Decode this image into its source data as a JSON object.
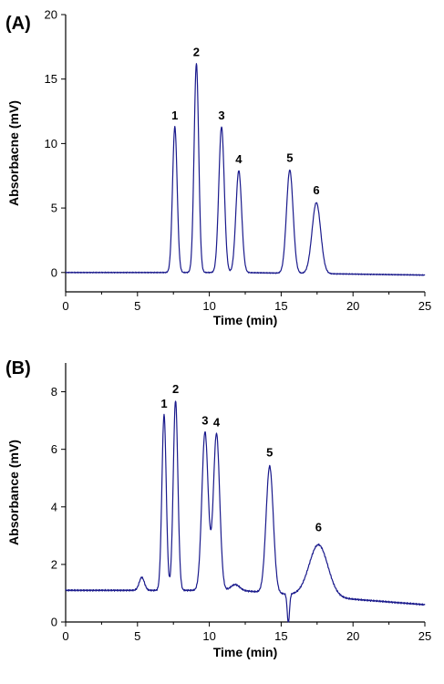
{
  "chart_data": [
    {
      "type": "line",
      "panel_label": "(A)",
      "xlabel": "Time (min)",
      "ylabel": "Absorbacne (mV)",
      "xlim": [
        0,
        25
      ],
      "ylim": [
        -1.5,
        20
      ],
      "xticks": [
        0,
        5,
        10,
        15,
        20,
        25
      ],
      "yticks": [
        0,
        5,
        10,
        15,
        20
      ],
      "line_color": "#1a1a8c",
      "baseline": 0,
      "baseline_end": -0.2,
      "peaks": [
        {
          "label": "1",
          "x": 7.6,
          "y": 11.3,
          "w": 0.16
        },
        {
          "label": "2",
          "x": 9.1,
          "y": 16.2,
          "w": 0.16
        },
        {
          "label": "3",
          "x": 10.85,
          "y": 11.3,
          "w": 0.19
        },
        {
          "label": "4",
          "x": 12.05,
          "y": 7.9,
          "w": 0.2
        },
        {
          "label": "5",
          "x": 15.6,
          "y": 8.0,
          "w": 0.23
        },
        {
          "label": "6",
          "x": 17.45,
          "y": 5.5,
          "w": 0.3
        }
      ],
      "grid": false
    },
    {
      "type": "line",
      "panel_label": "(B)",
      "xlabel": "Time (min)",
      "ylabel": "Absorbance (mV)",
      "xlim": [
        0,
        25
      ],
      "ylim": [
        0,
        9
      ],
      "xticks": [
        0,
        5,
        10,
        15,
        20,
        25
      ],
      "yticks": [
        0,
        2,
        4,
        6,
        8
      ],
      "line_color": "#1a1a8c",
      "baseline": 1.1,
      "baseline_end": 0.6,
      "minor_peaks": [
        {
          "x": 5.3,
          "y": 1.55,
          "w": 0.18
        },
        {
          "x": 11.8,
          "y": 1.3,
          "w": 0.3
        }
      ],
      "dips": [
        {
          "x": 15.5,
          "y": 0.1
        }
      ],
      "peaks": [
        {
          "label": "1",
          "x": 6.85,
          "y": 7.2,
          "w": 0.15
        },
        {
          "label": "2",
          "x": 7.65,
          "y": 7.7,
          "w": 0.16
        },
        {
          "label": "3",
          "x": 9.7,
          "y": 6.6,
          "w": 0.22
        },
        {
          "label": "4",
          "x": 10.5,
          "y": 6.55,
          "w": 0.22
        },
        {
          "label": "5",
          "x": 14.2,
          "y": 5.5,
          "w": 0.25
        },
        {
          "label": "6",
          "x": 17.6,
          "y": 2.9,
          "w": 0.65
        }
      ],
      "grid": false
    }
  ]
}
